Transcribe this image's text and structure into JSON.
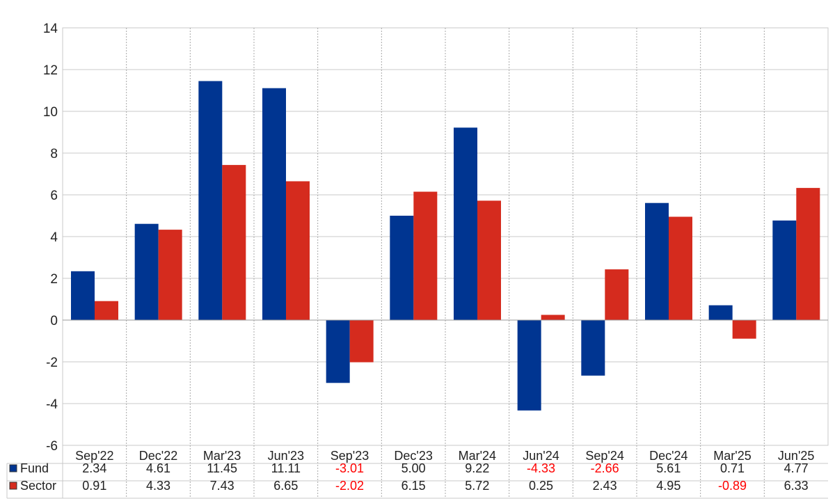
{
  "chart_data": {
    "type": "bar",
    "categories": [
      "Sep'22",
      "Dec'22",
      "Mar'23",
      "Jun'23",
      "Sep'23",
      "Dec'23",
      "Mar'24",
      "Jun'24",
      "Sep'24",
      "Dec'24",
      "Mar'25",
      "Jun'25"
    ],
    "series": [
      {
        "name": "Fund",
        "color": "#003591",
        "values": [
          2.34,
          4.61,
          11.45,
          11.11,
          -3.01,
          5.0,
          9.22,
          -4.33,
          -2.66,
          5.61,
          0.71,
          4.77
        ],
        "labels": [
          "2.34",
          "4.61",
          "11.45",
          "11.11",
          "-3.01",
          "5.00",
          "9.22",
          "-4.33",
          "-2.66",
          "5.61",
          "0.71",
          "4.77"
        ]
      },
      {
        "name": "Sector",
        "color": "#d52b1e",
        "values": [
          0.91,
          4.33,
          7.43,
          6.65,
          -2.02,
          6.15,
          5.72,
          0.25,
          2.43,
          4.95,
          -0.89,
          6.33
        ],
        "labels": [
          "0.91",
          "4.33",
          "7.43",
          "6.65",
          "-2.02",
          "6.15",
          "5.72",
          "0.25",
          "2.43",
          "4.95",
          "-0.89",
          "6.33"
        ]
      }
    ],
    "y_ticks": [
      "14",
      "12",
      "10",
      "8",
      "6",
      "4",
      "2",
      "0",
      "-2",
      "-4",
      "-6"
    ],
    "ylim": [
      -6,
      14
    ],
    "grid": true,
    "legend": "data-table-bottom",
    "negative_value_color": "#ff0000"
  }
}
